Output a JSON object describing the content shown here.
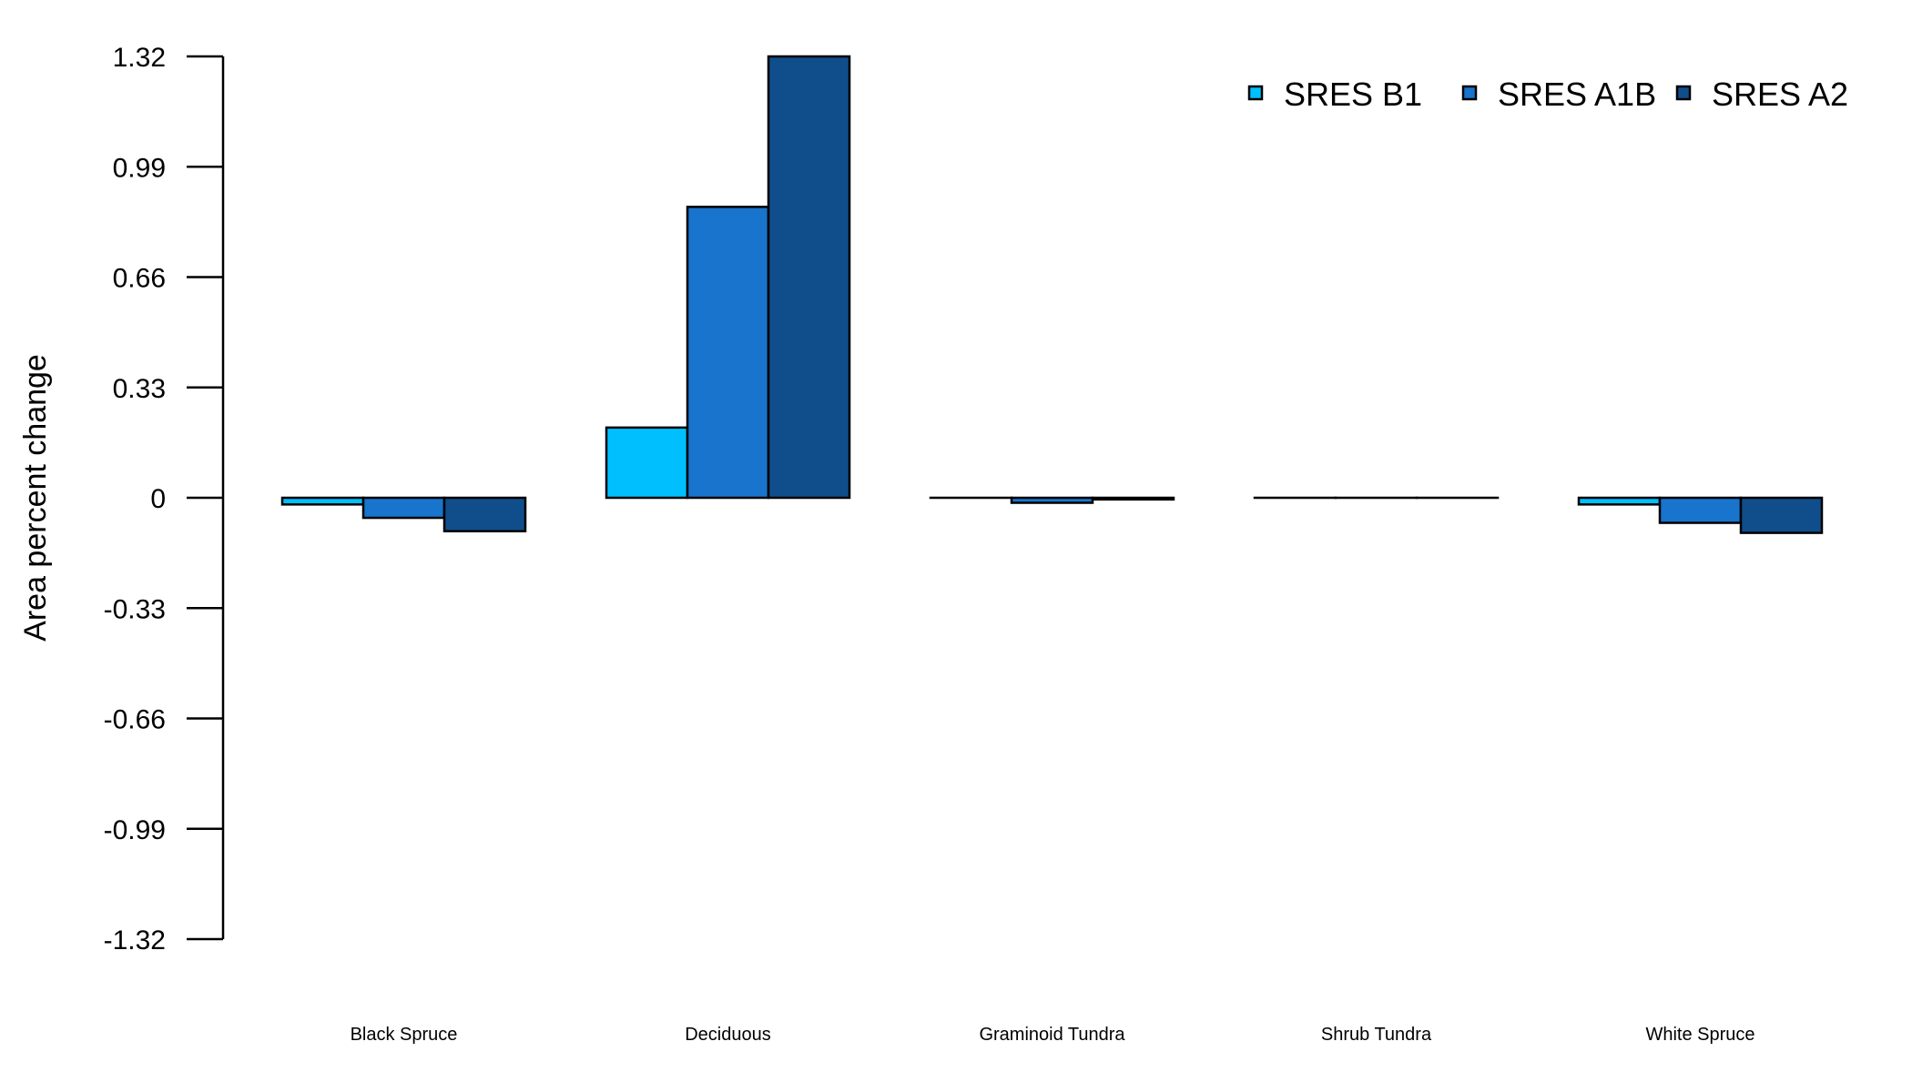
{
  "chart_data": {
    "type": "bar",
    "title": "",
    "xlabel": "",
    "ylabel": "Area percent change",
    "ylim": [
      -1.32,
      1.32
    ],
    "yticks": [
      1.32,
      0.99,
      0.66,
      0.33,
      0,
      -0.33,
      -0.66,
      -0.99,
      -1.32
    ],
    "ytick_labels": [
      "1.32",
      "0.99",
      "0.66",
      "0.33",
      "0",
      "-0.33",
      "-0.66",
      "-0.99",
      "-1.32"
    ],
    "categories": [
      "Black Spruce",
      "Deciduous",
      "Graminoid Tundra",
      "Shrub Tundra",
      "White Spruce"
    ],
    "series": [
      {
        "name": "SRES B1",
        "color": "#00BFFF",
        "values": [
          -0.02,
          0.21,
          0.0,
          0.0,
          -0.02
        ]
      },
      {
        "name": "SRES A1B",
        "color": "#1874CD",
        "values": [
          -0.06,
          0.87,
          -0.015,
          0.0,
          -0.075
        ]
      },
      {
        "name": "SRES A2",
        "color": "#104E8B",
        "values": [
          -0.1,
          1.32,
          -0.005,
          0.0,
          -0.105
        ]
      }
    ],
    "grid": false,
    "legend": {
      "position": "top-right",
      "orientation": "horizontal"
    }
  }
}
